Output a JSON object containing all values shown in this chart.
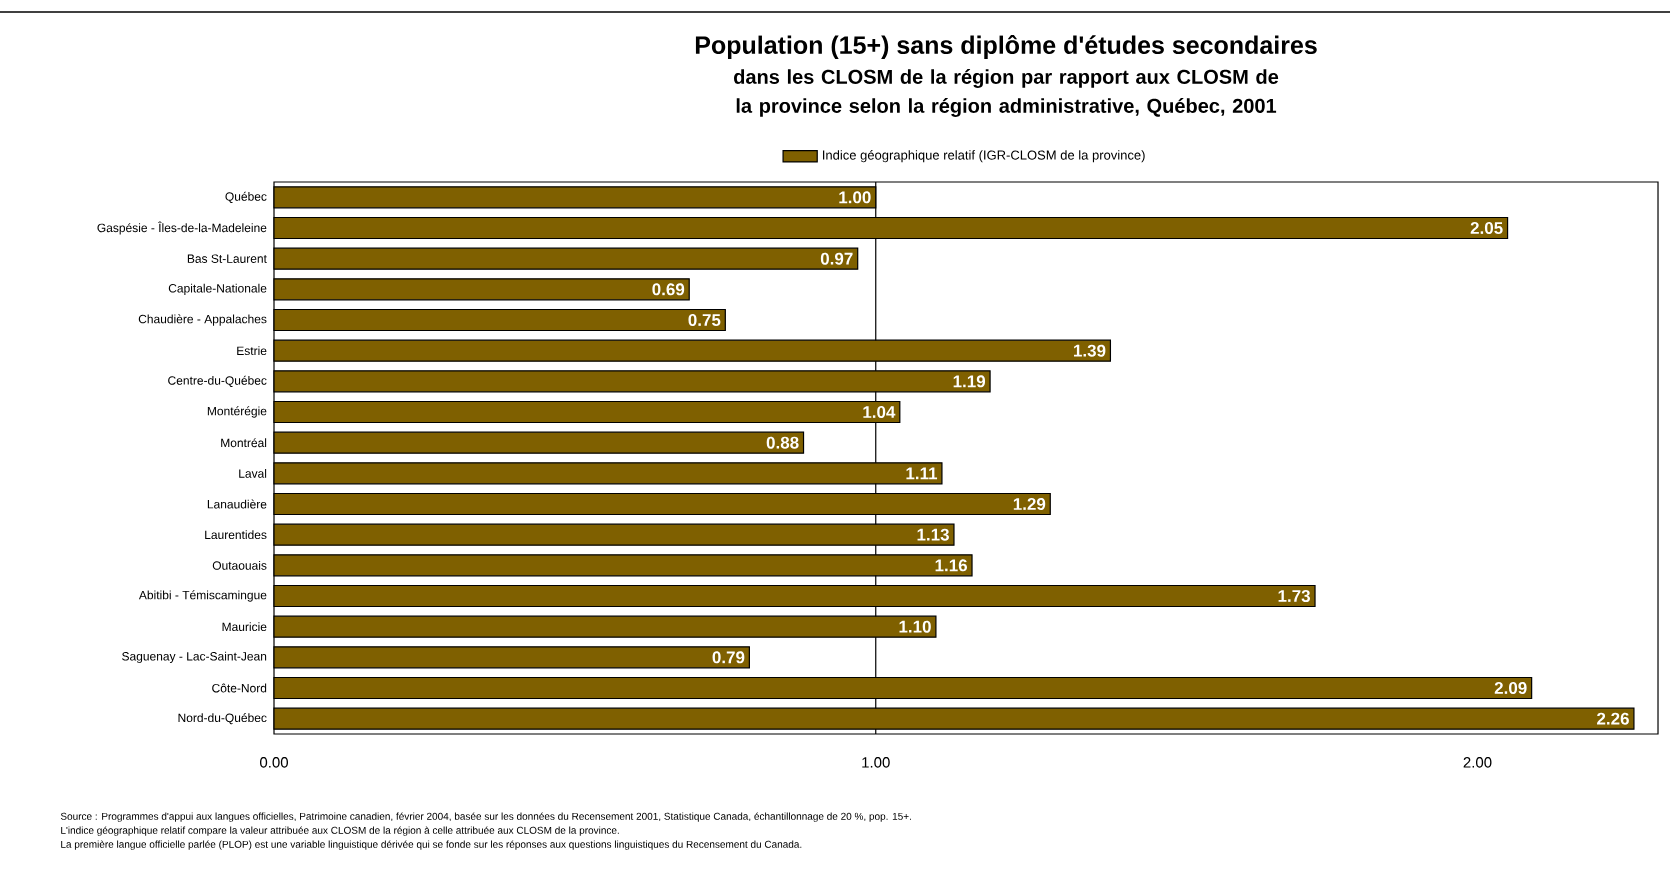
{
  "chart_data": {
    "type": "bar",
    "orientation": "horizontal",
    "title": "Population (15+) sans diplôme d'études secondaires",
    "subtitle": "dans les CLOSM de la région par rapport aux CLOSM de la province selon la région administrative, Québec, 2001",
    "categories": [
      "Québec",
      "Gaspésie - Îles-de-la-Madeleine",
      "Bas St-Laurent",
      "Capitale-Nationale",
      "Chaudière - Appalaches",
      "Estrie",
      "Centre-du-Québec",
      "Montérégie",
      "Montréal",
      "Laval",
      "Lanaudière",
      "Laurentides",
      "Outaouais",
      "Abitibi - Témiscamingue",
      "Mauricie",
      "Saguenay - Lac-Saint-Jean",
      "Côte-Nord",
      "Nord-du-Québec"
    ],
    "series": [
      {
        "name": "Indice géographique relatif (IGR-CLOSM de la province)",
        "color": "#7f6000",
        "values": [
          1.0,
          2.05,
          0.97,
          0.69,
          0.75,
          1.39,
          1.19,
          1.04,
          0.88,
          1.11,
          1.29,
          1.13,
          1.16,
          1.73,
          1.1,
          0.79,
          2.09,
          2.26
        ],
        "value_labels": [
          "1.00",
          "2.05",
          "0.97",
          "0.69",
          "0.75",
          "1.39",
          "1.19",
          "1.04",
          "0.88",
          "1.11",
          "1.29",
          "1.13",
          "1.16",
          "1.73",
          "1.10",
          "0.79",
          "2.09",
          "2.26"
        ]
      }
    ],
    "xlim": [
      0,
      2.3
    ],
    "xticks": [
      {
        "value": 0,
        "label": "0.00"
      },
      {
        "value": 1,
        "label": "1.00"
      },
      {
        "value": 2,
        "label": "2.00"
      }
    ],
    "ref_lines": [
      {
        "axis": "x",
        "value": 1,
        "color": "#000000"
      }
    ],
    "grid": false,
    "legend": "top",
    "annotations": [
      "Source : Programmes d'appui aux langues officielles, Patrimoine canadien, février 2004, basée sur les données du Recensement 2001, Statistique Canada, échantillonnage de 20 %, pop. 15+.",
      "L'indice géographique relatif compare la valeur attribuée aux CLOSM de la région à celle attribuée aux CLOSM de la province.",
      "La première langue officielle parlée (PLOP) est une variable linguistique dérivée qui se fonde sur les réponses aux questions linguistiques du Recensement du Canada."
    ]
  }
}
